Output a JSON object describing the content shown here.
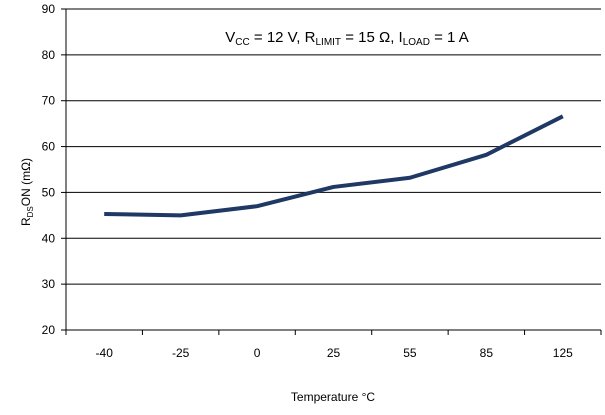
{
  "chart_data": {
    "type": "line",
    "title_parts": {
      "vcc_main": "V",
      "vcc_sub": "CC",
      "vcc_rest": " = 12 V, ",
      "r_main": "R",
      "r_sub": "LIMIT",
      "r_rest": " = 15 Ω, ",
      "i_main": "I",
      "i_sub": "LOAD",
      "i_rest": " = 1 A"
    },
    "xlabel": "Temperature °C",
    "ylabel_parts": {
      "main": "R",
      "sub": "DS",
      "rest": "ON (mΩ)"
    },
    "categories": [
      "-40",
      "-25",
      "0",
      "25",
      "55",
      "85",
      "125"
    ],
    "series": [
      {
        "values": [
          45.3,
          45.0,
          47.0,
          51.2,
          53.2,
          58.2,
          66.6
        ],
        "color": "#1f3864"
      }
    ],
    "ylim": [
      20,
      90
    ],
    "yticks": [
      "20",
      "30",
      "40",
      "50",
      "60",
      "70",
      "80",
      "90"
    ],
    "grid": true,
    "legend": "none"
  }
}
